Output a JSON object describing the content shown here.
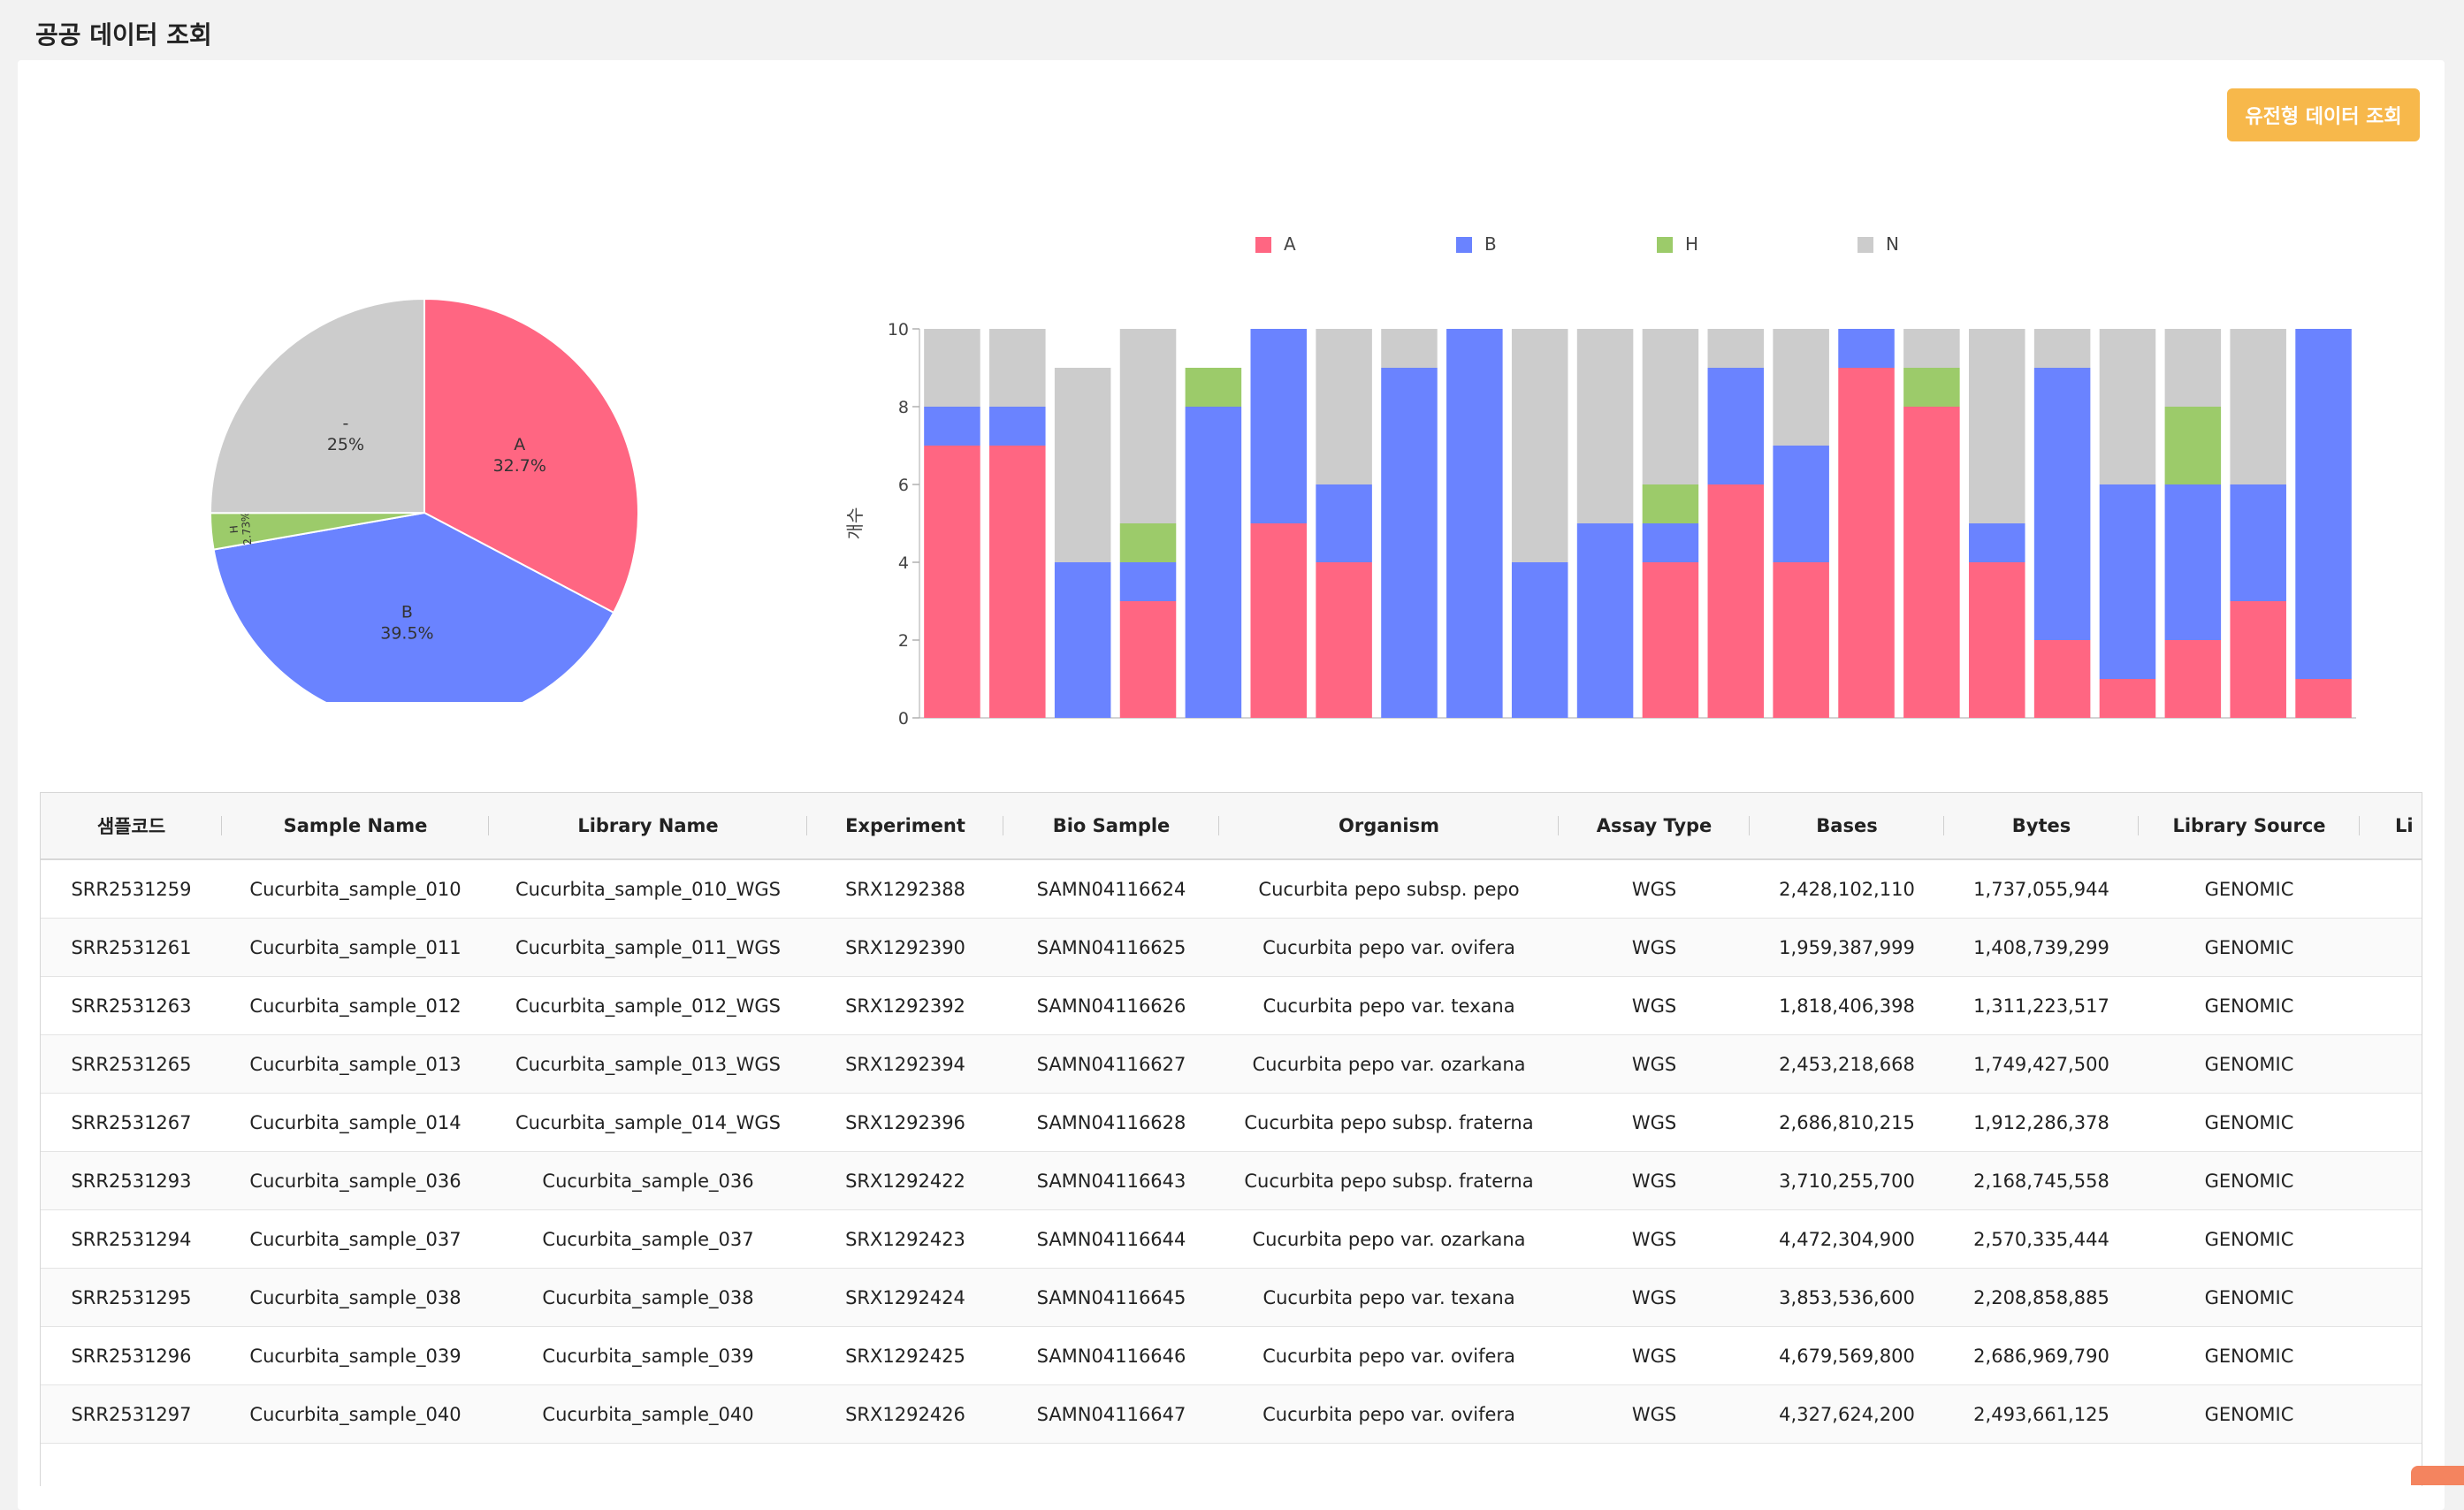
{
  "page": {
    "title": "공공 데이터 조회"
  },
  "toolbar": {
    "genotype_button_label": "유전형 데이터 조회"
  },
  "colors": {
    "A": "#ff6682",
    "B": "#6a83ff",
    "H": "#9ccb6a",
    "N": "#cccccc",
    "accent": "#f7b84b"
  },
  "chart_data": [
    {
      "type": "pie",
      "slices": [
        {
          "label": "A",
          "value": 32.7,
          "text": "32.7%",
          "color": "#ff6682"
        },
        {
          "label": "B",
          "value": 39.5,
          "text": "39.5%",
          "color": "#6a83ff"
        },
        {
          "label": "H",
          "value": 2.73,
          "text": "2.73%",
          "color": "#9ccb6a"
        },
        {
          "label": "-",
          "value": 25,
          "text": "25%",
          "color": "#cccccc"
        }
      ]
    },
    {
      "type": "bar",
      "stacked": true,
      "ylabel": "개수",
      "ylim": [
        0,
        10
      ],
      "yticks": [
        0,
        2,
        4,
        6,
        8,
        10
      ],
      "legend": [
        "A",
        "B",
        "H",
        "N"
      ],
      "legend_position": "top",
      "series": [
        {
          "name": "A",
          "color": "#ff6682",
          "values": [
            7,
            7,
            0,
            3,
            0,
            5,
            4,
            0,
            0,
            0,
            0,
            4,
            6,
            4,
            9,
            8,
            4,
            2,
            1,
            2,
            3,
            1
          ]
        },
        {
          "name": "B",
          "color": "#6a83ff",
          "values": [
            1,
            1,
            4,
            1,
            8,
            5,
            2,
            9,
            10,
            4,
            5,
            1,
            3,
            3,
            1,
            0,
            1,
            7,
            5,
            4,
            3,
            9
          ]
        },
        {
          "name": "H",
          "color": "#9ccb6a",
          "values": [
            0,
            0,
            0,
            1,
            1,
            0,
            0,
            0,
            0,
            0,
            0,
            1,
            0,
            0,
            0,
            1,
            0,
            0,
            0,
            2,
            0,
            0
          ]
        },
        {
          "name": "N",
          "color": "#cccccc",
          "values": [
            2,
            2,
            5,
            5,
            0,
            0,
            4,
            1,
            0,
            6,
            5,
            4,
            1,
            3,
            0,
            1,
            5,
            1,
            4,
            2,
            4,
            0
          ]
        }
      ]
    }
  ],
  "table": {
    "columns": [
      "샘플코드",
      "Sample Name",
      "Library Name",
      "Experiment",
      "Bio Sample",
      "Organism",
      "Assay Type",
      "Bases",
      "Bytes",
      "Library Source",
      "Li"
    ],
    "rows": [
      [
        "SRR2531259",
        "Cucurbita_sample_010",
        "Cucurbita_sample_010_WGS",
        "SRX1292388",
        "SAMN04116624",
        "Cucurbita pepo subsp. pepo",
        "WGS",
        "2,428,102,110",
        "1,737,055,944",
        "GENOMIC",
        ""
      ],
      [
        "SRR2531261",
        "Cucurbita_sample_011",
        "Cucurbita_sample_011_WGS",
        "SRX1292390",
        "SAMN04116625",
        "Cucurbita pepo var. ovifera",
        "WGS",
        "1,959,387,999",
        "1,408,739,299",
        "GENOMIC",
        ""
      ],
      [
        "SRR2531263",
        "Cucurbita_sample_012",
        "Cucurbita_sample_012_WGS",
        "SRX1292392",
        "SAMN04116626",
        "Cucurbita pepo var. texana",
        "WGS",
        "1,818,406,398",
        "1,311,223,517",
        "GENOMIC",
        ""
      ],
      [
        "SRR2531265",
        "Cucurbita_sample_013",
        "Cucurbita_sample_013_WGS",
        "SRX1292394",
        "SAMN04116627",
        "Cucurbita pepo var. ozarkana",
        "WGS",
        "2,453,218,668",
        "1,749,427,500",
        "GENOMIC",
        ""
      ],
      [
        "SRR2531267",
        "Cucurbita_sample_014",
        "Cucurbita_sample_014_WGS",
        "SRX1292396",
        "SAMN04116628",
        "Cucurbita pepo subsp. fraterna",
        "WGS",
        "2,686,810,215",
        "1,912,286,378",
        "GENOMIC",
        ""
      ],
      [
        "SRR2531293",
        "Cucurbita_sample_036",
        "Cucurbita_sample_036",
        "SRX1292422",
        "SAMN04116643",
        "Cucurbita pepo subsp. fraterna",
        "WGS",
        "3,710,255,700",
        "2,168,745,558",
        "GENOMIC",
        ""
      ],
      [
        "SRR2531294",
        "Cucurbita_sample_037",
        "Cucurbita_sample_037",
        "SRX1292423",
        "SAMN04116644",
        "Cucurbita pepo var. ozarkana",
        "WGS",
        "4,472,304,900",
        "2,570,335,444",
        "GENOMIC",
        ""
      ],
      [
        "SRR2531295",
        "Cucurbita_sample_038",
        "Cucurbita_sample_038",
        "SRX1292424",
        "SAMN04116645",
        "Cucurbita pepo var. texana",
        "WGS",
        "3,853,536,600",
        "2,208,858,885",
        "GENOMIC",
        ""
      ],
      [
        "SRR2531296",
        "Cucurbita_sample_039",
        "Cucurbita_sample_039",
        "SRX1292425",
        "SAMN04116646",
        "Cucurbita pepo var. ovifera",
        "WGS",
        "4,679,569,800",
        "2,686,969,790",
        "GENOMIC",
        ""
      ],
      [
        "SRR2531297",
        "Cucurbita_sample_040",
        "Cucurbita_sample_040",
        "SRX1292426",
        "SAMN04116647",
        "Cucurbita pepo var. ovifera",
        "WGS",
        "4,327,624,200",
        "2,493,661,125",
        "GENOMIC",
        ""
      ]
    ]
  }
}
